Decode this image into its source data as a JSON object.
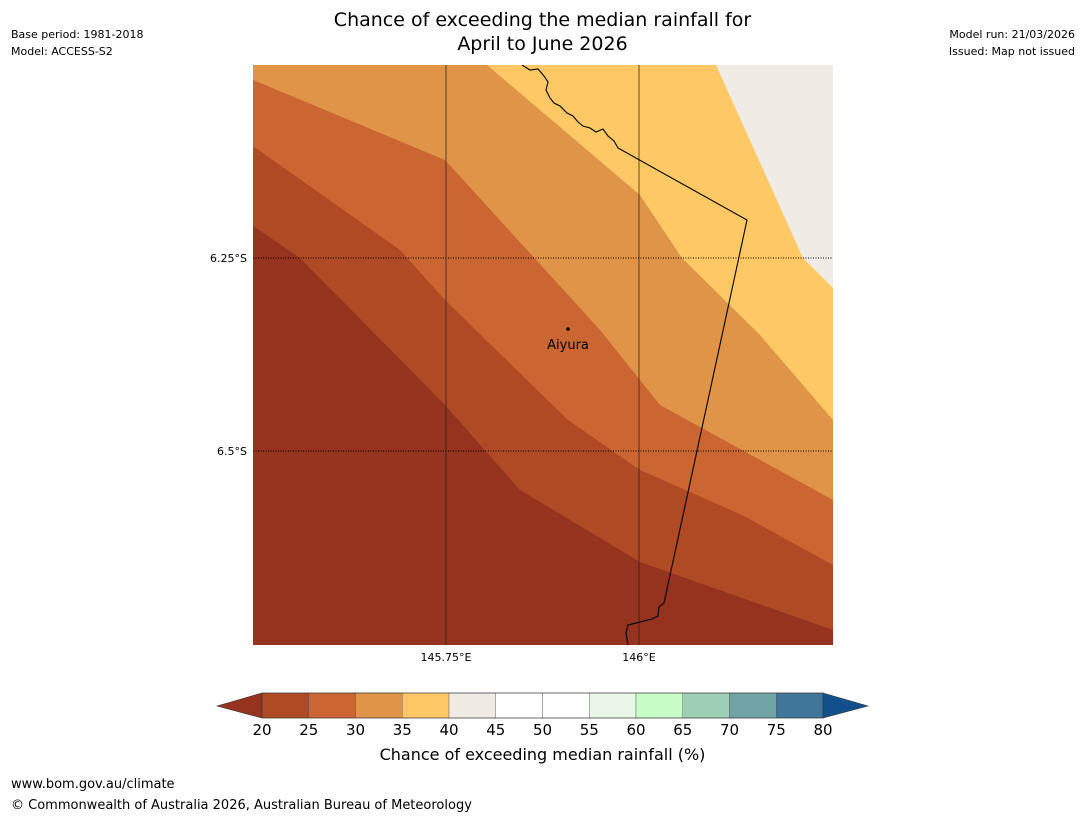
{
  "title": {
    "line1": "Chance of exceeding the median rainfall for",
    "line2": "April to June 2026"
  },
  "meta_left": {
    "base_period": "Base period: 1981-2018",
    "model": "Model: ACCESS-S2"
  },
  "meta_right": {
    "model_run": "Model run: 21/03/2026",
    "issued": "Issued: Map not issued"
  },
  "map": {
    "place_label": "Aiyura",
    "lat_ticks": [
      "6.25°S",
      "6.5°S"
    ],
    "lon_ticks": [
      "145.75°E",
      "146°E"
    ]
  },
  "colorbar": {
    "title": "Chance of exceeding median rainfall (%)",
    "tick_labels": [
      "20",
      "25",
      "30",
      "35",
      "40",
      "45",
      "50",
      "55",
      "60",
      "65",
      "70",
      "75",
      "80"
    ],
    "colors": [
      "#b04a24",
      "#cb6532",
      "#e09448",
      "#fec965",
      "#f0ebe5",
      "#ffffff",
      "#ffffff",
      "#e9f6e8",
      "#c8fcc7",
      "#9ecfb6",
      "#6fa3a6",
      "#3f7699"
    ],
    "under_color": "#96331e",
    "over_color": "#12508c"
  },
  "zone_colors": {
    "lt20": "#96331e",
    "c20_25": "#b04a24",
    "c25_30": "#cb6532",
    "c30_35": "#e09448",
    "c35_40": "#fec965",
    "c40_45": "#f0ebe5"
  },
  "footer": {
    "website": "www.bom.gov.au/climate",
    "copyright": "© Commonwealth of Australia 2026, Australian Bureau of Meteorology"
  }
}
